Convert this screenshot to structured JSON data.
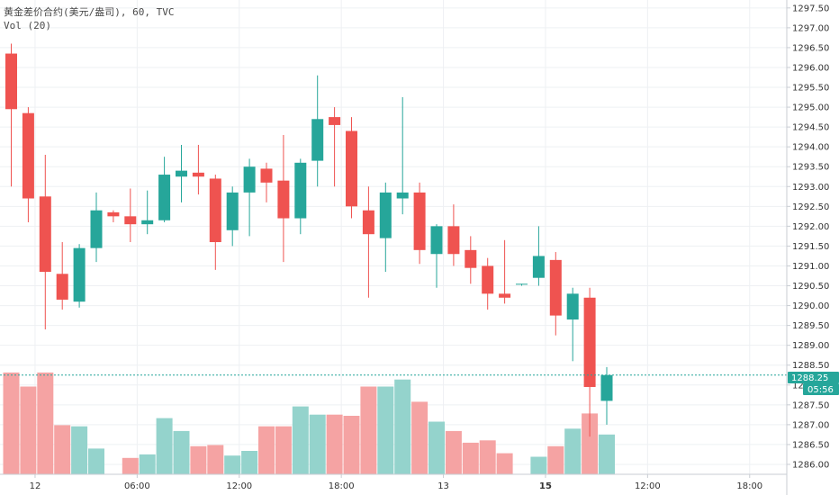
{
  "legend": {
    "title": "黄金差价合约(美元/盎司), 60, TVC",
    "volume": "Vol (20)"
  },
  "price_badge": "1288.25",
  "countdown_badge": "05:56",
  "colors": {
    "up": "#26a69a",
    "down": "#ef5350",
    "vol_up": "#94d3cc",
    "vol_down": "#f5a3a3",
    "grid": "#eef0f3",
    "axis_text": "#333333",
    "price_line": "#26a69a"
  },
  "chart_data": {
    "type": "candlestick",
    "y_axis": {
      "range": [
        1285.75,
        1297.7
      ],
      "ticks": [
        "1286.00",
        "1286.50",
        "1287.00",
        "1287.50",
        "1288.00",
        "1288.50",
        "1289.00",
        "1289.50",
        "1290.00",
        "1290.50",
        "1291.00",
        "1291.50",
        "1292.00",
        "1292.50",
        "1293.00",
        "1293.50",
        "1294.00",
        "1294.50",
        "1295.00",
        "1295.50",
        "1296.00",
        "1296.50",
        "1297.00",
        "1297.50"
      ]
    },
    "x_axis": {
      "ticks": [
        {
          "label": "12",
          "bar": 1.4,
          "bold": false
        },
        {
          "label": "06:00",
          "bar": 7.4,
          "bold": false
        },
        {
          "label": "12:00",
          "bar": 13.4,
          "bold": false
        },
        {
          "label": "18:00",
          "bar": 19.4,
          "bold": false
        },
        {
          "label": "13",
          "bar": 25.4,
          "bold": false
        },
        {
          "label": "15",
          "bar": 31.4,
          "bold": true
        },
        {
          "label": "12:00",
          "bar": 37.4,
          "bold": false
        },
        {
          "label": "18:00",
          "bar": 43.4,
          "bold": false
        }
      ]
    },
    "current_price": 1288.25,
    "candles": [
      {
        "o": 1296.35,
        "h": 1296.6,
        "l": 1293.0,
        "c": 1294.95,
        "v": 0.87
      },
      {
        "o": 1294.85,
        "h": 1295.0,
        "l": 1292.1,
        "c": 1292.7,
        "v": 0.75
      },
      {
        "o": 1292.75,
        "h": 1293.8,
        "l": 1289.4,
        "c": 1290.85,
        "v": 0.87
      },
      {
        "o": 1290.8,
        "h": 1291.6,
        "l": 1289.9,
        "c": 1290.15,
        "v": 0.42
      },
      {
        "o": 1290.1,
        "h": 1291.55,
        "l": 1289.95,
        "c": 1291.45,
        "v": 0.41
      },
      {
        "o": 1291.45,
        "h": 1292.85,
        "l": 1291.1,
        "c": 1292.4,
        "v": 0.22
      },
      {
        "o": 1292.35,
        "h": 1292.4,
        "l": 1292.1,
        "c": 1292.25,
        "v": 0.0
      },
      {
        "o": 1292.25,
        "h": 1292.95,
        "l": 1291.6,
        "c": 1292.05,
        "v": 0.14
      },
      {
        "o": 1292.05,
        "h": 1292.9,
        "l": 1291.8,
        "c": 1292.15,
        "v": 0.17
      },
      {
        "o": 1292.15,
        "h": 1293.75,
        "l": 1292.1,
        "c": 1293.3,
        "v": 0.48
      },
      {
        "o": 1293.25,
        "h": 1294.05,
        "l": 1292.6,
        "c": 1293.4,
        "v": 0.37
      },
      {
        "o": 1293.35,
        "h": 1294.05,
        "l": 1292.8,
        "c": 1293.25,
        "v": 0.24
      },
      {
        "o": 1293.2,
        "h": 1293.3,
        "l": 1290.9,
        "c": 1291.6,
        "v": 0.25
      },
      {
        "o": 1291.9,
        "h": 1293.0,
        "l": 1291.5,
        "c": 1292.85,
        "v": 0.16
      },
      {
        "o": 1292.85,
        "h": 1293.7,
        "l": 1291.75,
        "c": 1293.5,
        "v": 0.2
      },
      {
        "o": 1293.45,
        "h": 1293.6,
        "l": 1292.6,
        "c": 1293.1,
        "v": 0.41
      },
      {
        "o": 1293.15,
        "h": 1294.3,
        "l": 1291.1,
        "c": 1292.2,
        "v": 0.41
      },
      {
        "o": 1292.2,
        "h": 1293.7,
        "l": 1291.8,
        "c": 1293.6,
        "v": 0.58
      },
      {
        "o": 1293.65,
        "h": 1295.8,
        "l": 1293.0,
        "c": 1294.7,
        "v": 0.51
      },
      {
        "o": 1294.75,
        "h": 1295.0,
        "l": 1293.0,
        "c": 1294.55,
        "v": 0.51
      },
      {
        "o": 1294.4,
        "h": 1294.75,
        "l": 1292.2,
        "c": 1292.5,
        "v": 0.5
      },
      {
        "o": 1292.4,
        "h": 1293.0,
        "l": 1290.2,
        "c": 1291.8,
        "v": 0.75
      },
      {
        "o": 1291.7,
        "h": 1293.1,
        "l": 1290.85,
        "c": 1292.85,
        "v": 0.75
      },
      {
        "o": 1292.7,
        "h": 1295.25,
        "l": 1292.3,
        "c": 1292.85,
        "v": 0.81
      },
      {
        "o": 1292.85,
        "h": 1293.1,
        "l": 1291.05,
        "c": 1291.4,
        "v": 0.62
      },
      {
        "o": 1291.3,
        "h": 1292.05,
        "l": 1290.45,
        "c": 1292.0,
        "v": 0.45
      },
      {
        "o": 1292.0,
        "h": 1292.55,
        "l": 1291.0,
        "c": 1291.3,
        "v": 0.37
      },
      {
        "o": 1291.4,
        "h": 1291.75,
        "l": 1290.55,
        "c": 1290.95,
        "v": 0.27
      },
      {
        "o": 1291.0,
        "h": 1291.2,
        "l": 1289.9,
        "c": 1290.3,
        "v": 0.29
      },
      {
        "o": 1290.3,
        "h": 1291.65,
        "l": 1290.05,
        "c": 1290.2,
        "v": 0.18
      },
      {
        "o": 1290.55,
        "h": 1290.55,
        "l": 1290.5,
        "c": 1290.55,
        "v": 0.0
      },
      {
        "o": 1290.7,
        "h": 1292.0,
        "l": 1290.5,
        "c": 1291.25,
        "v": 0.15
      },
      {
        "o": 1291.15,
        "h": 1291.35,
        "l": 1289.25,
        "c": 1289.75,
        "v": 0.24
      },
      {
        "o": 1289.65,
        "h": 1290.45,
        "l": 1288.6,
        "c": 1290.3,
        "v": 0.39
      },
      {
        "o": 1290.2,
        "h": 1290.45,
        "l": 1286.7,
        "c": 1287.95,
        "v": 0.52
      },
      {
        "o": 1287.6,
        "h": 1288.45,
        "l": 1287.0,
        "c": 1288.25,
        "v": 0.34
      }
    ]
  }
}
